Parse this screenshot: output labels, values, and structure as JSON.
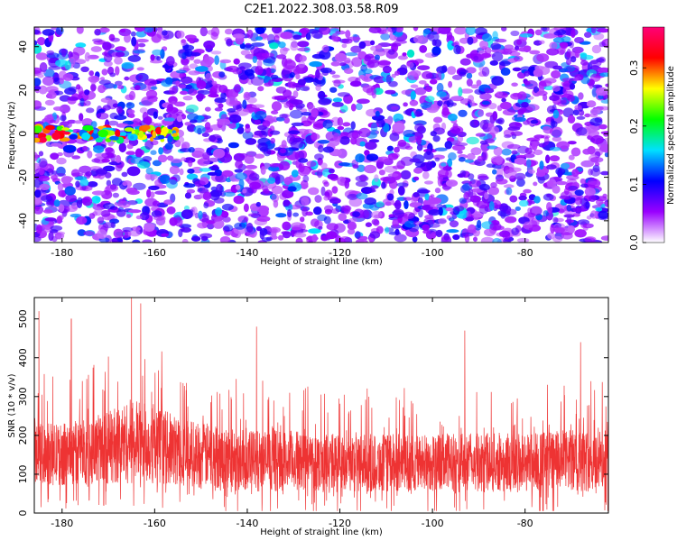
{
  "title": "C2E1.2022.308.03.58.R09",
  "chart_data": [
    {
      "type": "heatmap",
      "xlabel": "Height of straight line (km)",
      "ylabel": "Frequency (Hz)",
      "xlim": [
        -186,
        -62
      ],
      "ylim": [
        -50,
        49
      ],
      "xticks": [
        -180,
        -160,
        -140,
        -120,
        -100,
        -80
      ],
      "yticks": [
        -40,
        -20,
        0,
        20,
        40
      ],
      "xtick_labels": [
        "-180",
        "-160",
        "-140",
        "-120",
        "-100",
        "-80"
      ],
      "ytick_labels": [
        "-40",
        "-20",
        "0",
        "20",
        "40"
      ],
      "colorbar": {
        "label": "Normalized spectral amplitude",
        "range": [
          0,
          0.37
        ],
        "ticks": [
          0,
          0.1,
          0.2,
          0.3
        ],
        "tick_labels": [
          "0.0",
          "0.1",
          "0.2",
          "0.3"
        ],
        "colormap": [
          "#ffffff",
          "#9900ff",
          "#0000ff",
          "#00e0ff",
          "#00ff00",
          "#ffff00",
          "#ff0000",
          "#ff0077"
        ]
      },
      "features": [
        {
          "x_range": [
            -186,
            -155
          ],
          "y_center": 0,
          "y_halfwidth": 3,
          "peak_amplitude": 0.35
        }
      ]
    },
    {
      "type": "line",
      "xlabel": "Height of straight line (km)",
      "ylabel": "SNR (10 * v/v)",
      "xlim": [
        -186,
        -62
      ],
      "ylim": [
        0,
        555
      ],
      "xticks": [
        -180,
        -160,
        -140,
        -120,
        -100,
        -80
      ],
      "yticks": [
        0,
        100,
        200,
        300,
        400,
        500
      ],
      "xtick_labels": [
        "-180",
        "-160",
        "-140",
        "-120",
        "-100",
        "-80"
      ],
      "ytick_labels": [
        "0",
        "100",
        "200",
        "300",
        "400",
        "500"
      ],
      "line_color": "#ee3333",
      "envelope": {
        "x": [
          -186,
          -180,
          -175,
          -170,
          -165,
          -160,
          -155,
          -150,
          -140,
          -130,
          -120,
          -110,
          -100,
          -90,
          -80,
          -70,
          -62
        ],
        "median": [
          155,
          150,
          160,
          170,
          185,
          175,
          160,
          150,
          135,
          135,
          130,
          128,
          130,
          130,
          132,
          135,
          135
        ],
        "spread": [
          80,
          80,
          85,
          95,
          110,
          100,
          90,
          85,
          80,
          78,
          75,
          75,
          75,
          75,
          78,
          80,
          80
        ]
      },
      "notable_peaks": [
        {
          "x": -185,
          "y": 520
        },
        {
          "x": -178,
          "y": 500
        },
        {
          "x": -165,
          "y": 555
        },
        {
          "x": -163,
          "y": 540
        },
        {
          "x": -138,
          "y": 480
        },
        {
          "x": -93,
          "y": 470
        },
        {
          "x": -68,
          "y": 440
        }
      ]
    }
  ]
}
